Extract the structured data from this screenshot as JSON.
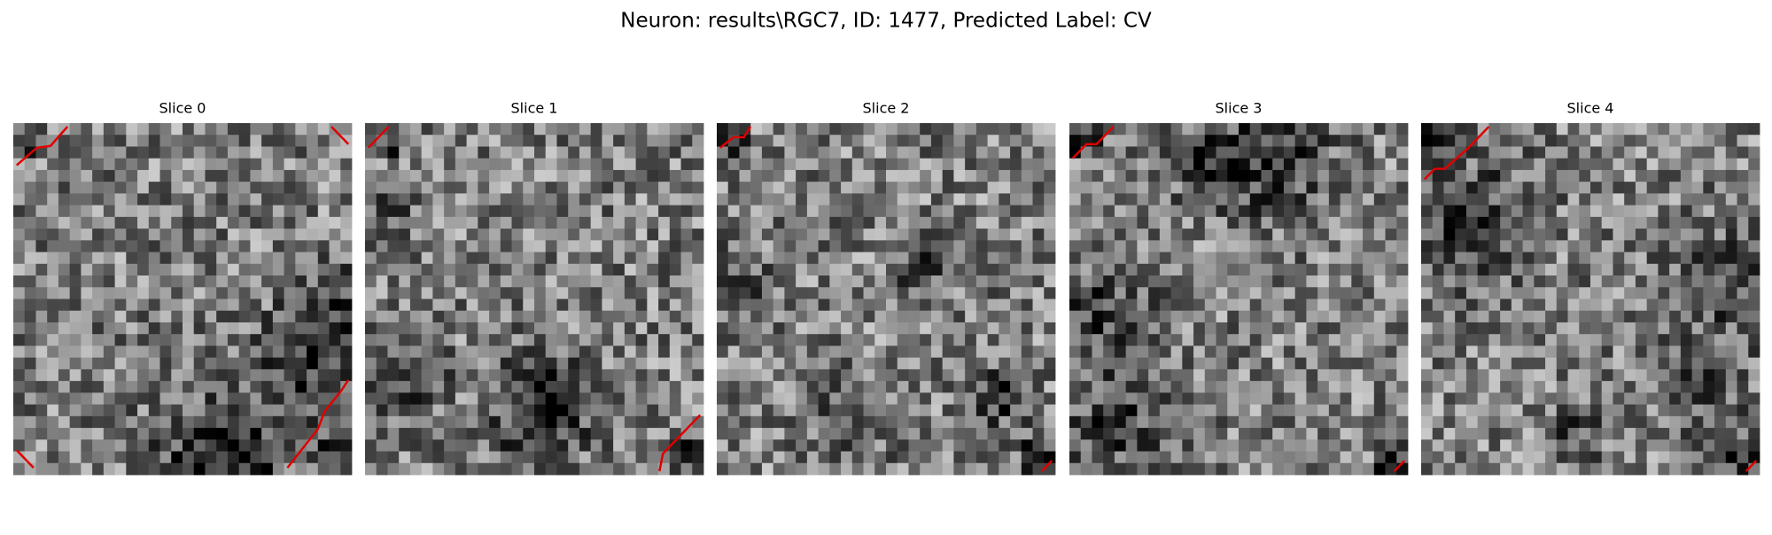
{
  "header": {
    "title": "Neuron: results\\RGC7, ID: 1477, Predicted Label: CV"
  },
  "panels": [
    {
      "title": "Slice 0"
    },
    {
      "title": "Slice 1"
    },
    {
      "title": "Slice 2"
    },
    {
      "title": "Slice 3"
    },
    {
      "title": "Slice 4"
    }
  ]
}
